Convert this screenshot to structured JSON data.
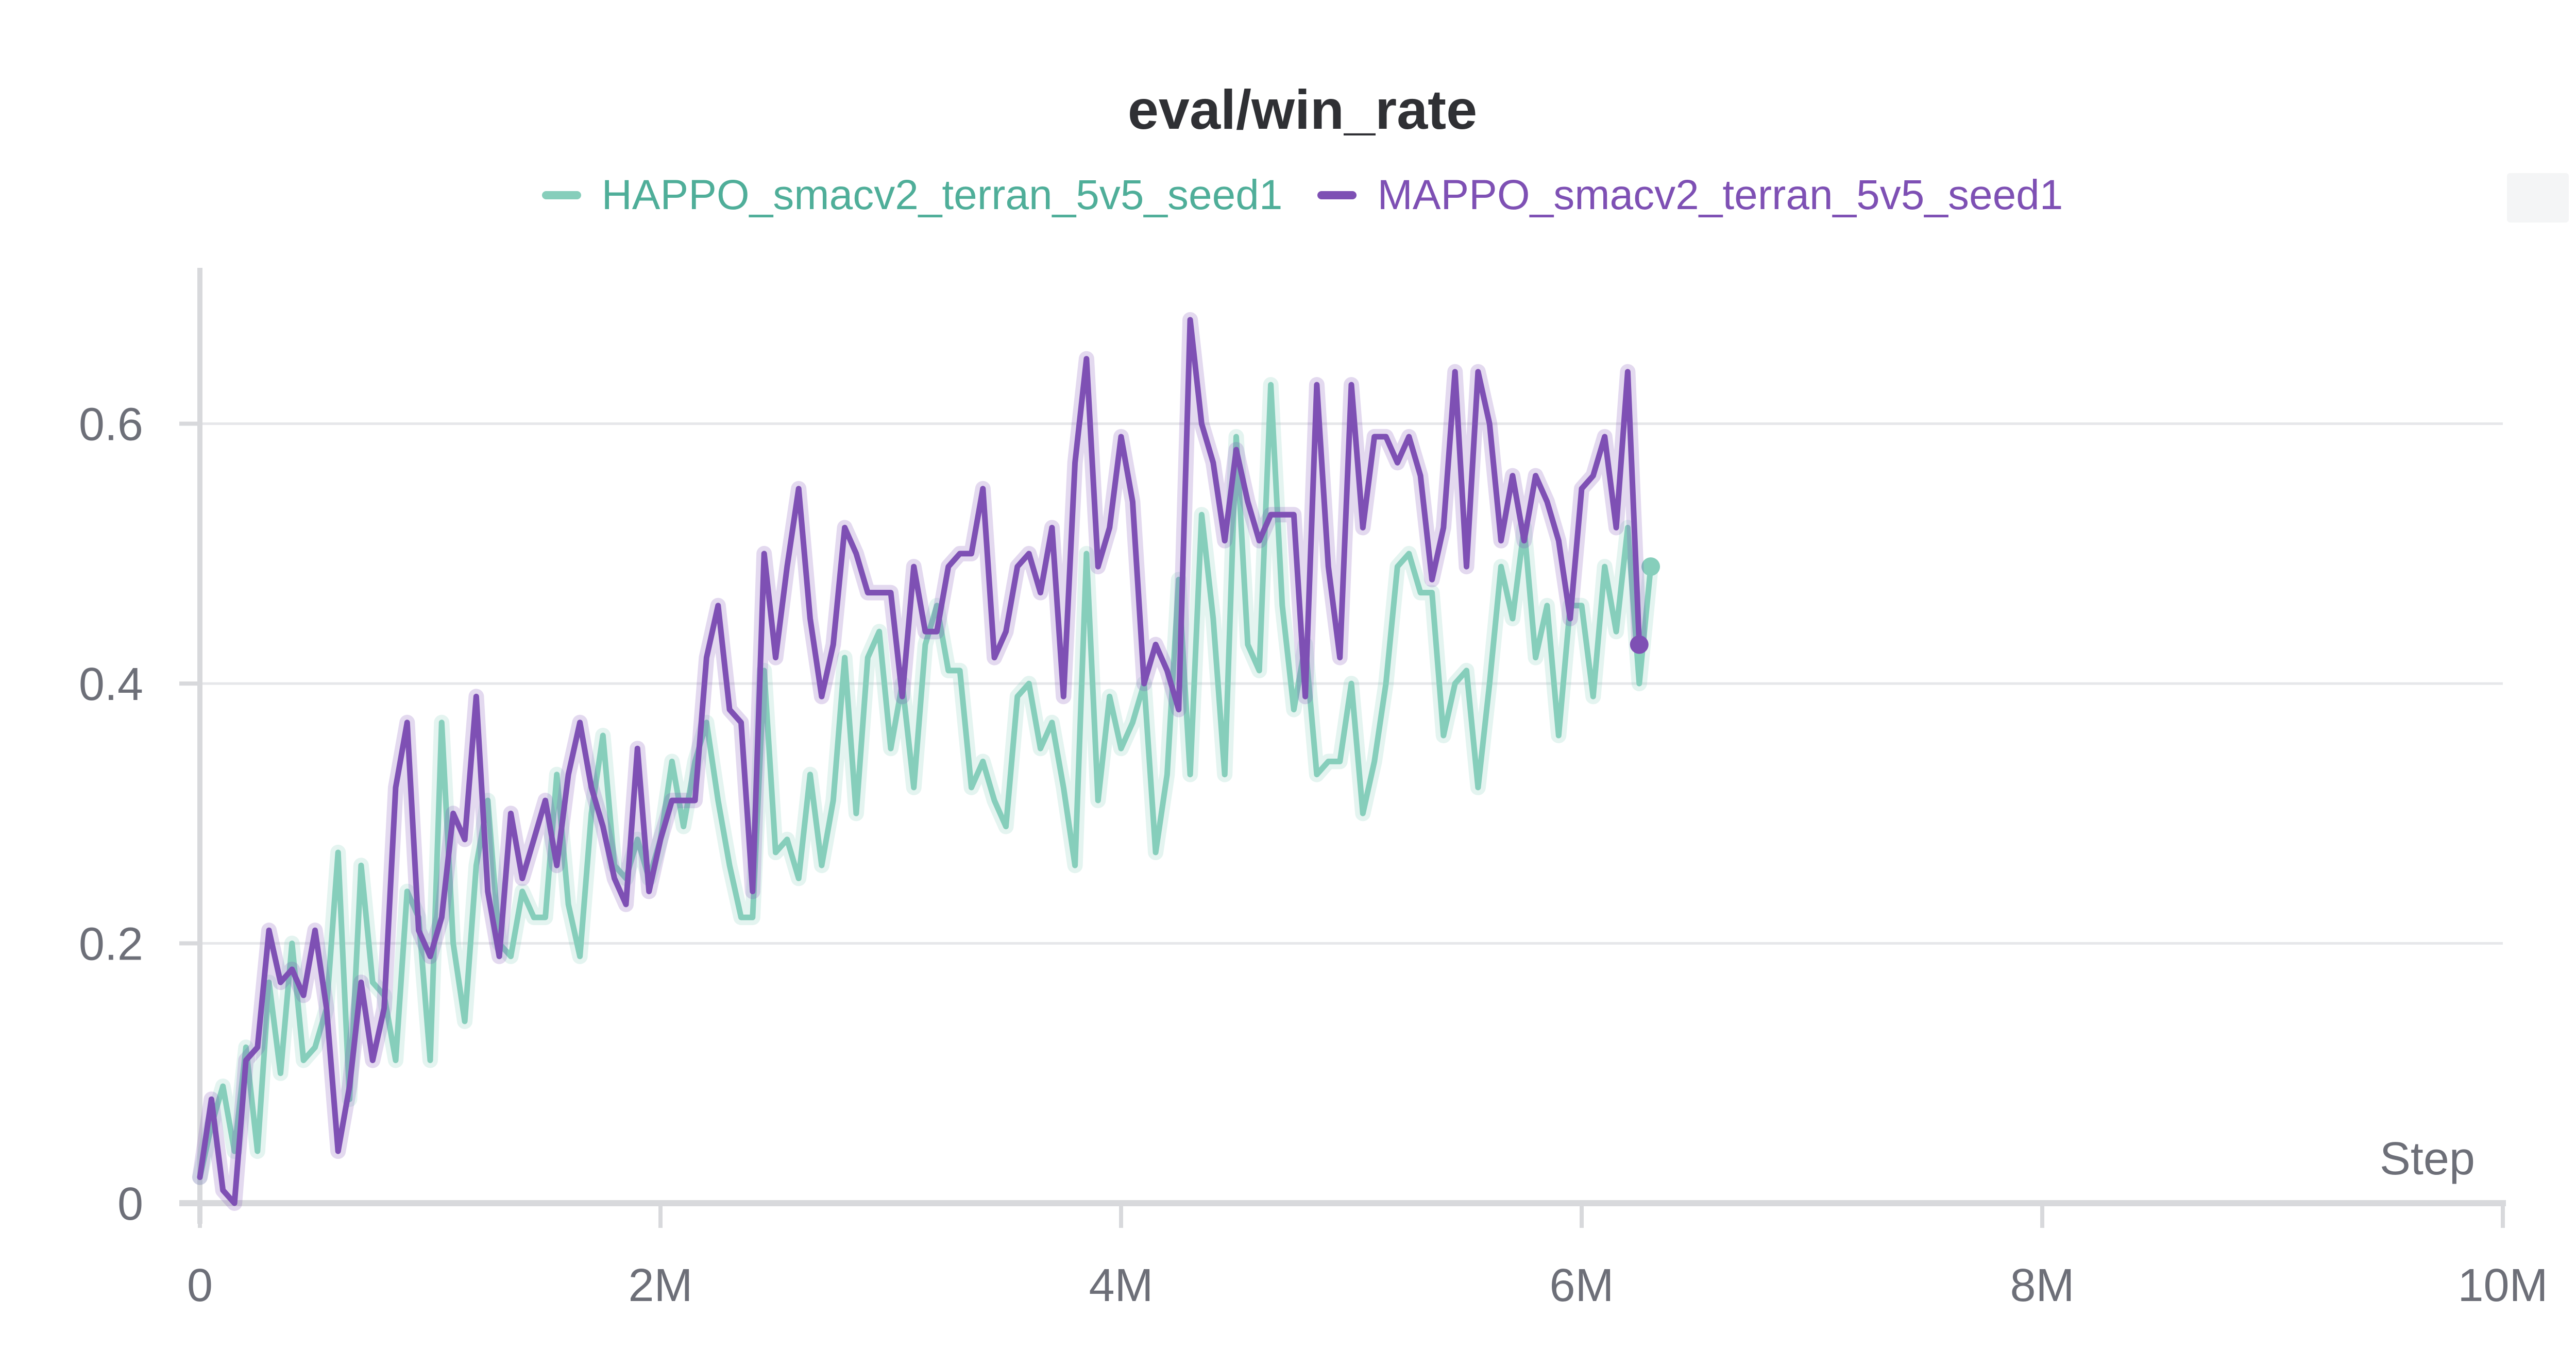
{
  "chart_data": {
    "type": "line",
    "title": "eval/win_rate",
    "xlabel": "Step",
    "ylabel": "",
    "xlim": [
      0,
      10000000
    ],
    "ylim": [
      0,
      0.72
    ],
    "x_ticks": [
      0,
      2000000,
      4000000,
      6000000,
      8000000,
      10000000
    ],
    "x_tick_labels": [
      "0",
      "2M",
      "4M",
      "6M",
      "8M",
      "10M"
    ],
    "y_ticks": [
      0,
      0.2,
      0.4,
      0.6
    ],
    "y_tick_labels": [
      "0",
      "0.2",
      "0.4",
      "0.6"
    ],
    "grid": true,
    "legend_position": "top-center",
    "x_step": 50000,
    "series": [
      {
        "name": "HAPPO_smacv2_terran_5v5_seed1",
        "color": "#86cebb",
        "values": [
          0.02,
          0.06,
          0.09,
          0.04,
          0.12,
          0.04,
          0.17,
          0.1,
          0.2,
          0.11,
          0.12,
          0.15,
          0.27,
          0.08,
          0.26,
          0.17,
          0.16,
          0.11,
          0.24,
          0.22,
          0.11,
          0.37,
          0.2,
          0.14,
          0.26,
          0.31,
          0.2,
          0.19,
          0.24,
          0.22,
          0.22,
          0.33,
          0.23,
          0.19,
          0.3,
          0.36,
          0.26,
          0.25,
          0.28,
          0.25,
          0.28,
          0.34,
          0.29,
          0.34,
          0.37,
          0.31,
          0.26,
          0.22,
          0.22,
          0.41,
          0.27,
          0.28,
          0.25,
          0.33,
          0.26,
          0.31,
          0.42,
          0.3,
          0.42,
          0.44,
          0.35,
          0.4,
          0.32,
          0.43,
          0.46,
          0.41,
          0.41,
          0.32,
          0.34,
          0.31,
          0.29,
          0.39,
          0.4,
          0.35,
          0.37,
          0.32,
          0.26,
          0.5,
          0.31,
          0.39,
          0.35,
          0.37,
          0.4,
          0.27,
          0.33,
          0.48,
          0.33,
          0.53,
          0.45,
          0.33,
          0.59,
          0.43,
          0.41,
          0.63,
          0.46,
          0.38,
          0.43,
          0.33,
          0.34,
          0.34,
          0.4,
          0.3,
          0.34,
          0.4,
          0.49,
          0.5,
          0.47,
          0.47,
          0.36,
          0.4,
          0.41,
          0.32,
          0.4,
          0.49,
          0.45,
          0.52,
          0.42,
          0.46,
          0.36,
          0.46,
          0.46,
          0.39,
          0.49,
          0.44,
          0.52,
          0.4,
          0.49
        ]
      },
      {
        "name": "MAPPO_smacv2_terran_5v5_seed1",
        "color": "#7e50b4",
        "values": [
          0.02,
          0.08,
          0.01,
          0.0,
          0.11,
          0.12,
          0.21,
          0.17,
          0.18,
          0.16,
          0.21,
          0.15,
          0.04,
          0.09,
          0.17,
          0.11,
          0.15,
          0.32,
          0.37,
          0.21,
          0.19,
          0.22,
          0.3,
          0.28,
          0.39,
          0.24,
          0.19,
          0.3,
          0.25,
          0.28,
          0.31,
          0.26,
          0.33,
          0.37,
          0.32,
          0.29,
          0.25,
          0.23,
          0.35,
          0.24,
          0.28,
          0.31,
          0.31,
          0.31,
          0.42,
          0.46,
          0.38,
          0.37,
          0.24,
          0.5,
          0.42,
          0.49,
          0.55,
          0.45,
          0.39,
          0.43,
          0.52,
          0.5,
          0.47,
          0.47,
          0.47,
          0.39,
          0.49,
          0.44,
          0.44,
          0.49,
          0.5,
          0.5,
          0.55,
          0.42,
          0.44,
          0.49,
          0.5,
          0.47,
          0.52,
          0.39,
          0.57,
          0.65,
          0.49,
          0.52,
          0.59,
          0.54,
          0.4,
          0.43,
          0.41,
          0.38,
          0.68,
          0.6,
          0.57,
          0.51,
          0.58,
          0.54,
          0.51,
          0.53,
          0.53,
          0.53,
          0.39,
          0.63,
          0.49,
          0.42,
          0.63,
          0.52,
          0.59,
          0.59,
          0.57,
          0.59,
          0.56,
          0.48,
          0.52,
          0.64,
          0.49,
          0.64,
          0.6,
          0.51,
          0.56,
          0.51,
          0.56,
          0.54,
          0.51,
          0.45,
          0.55,
          0.56,
          0.59,
          0.52,
          0.64,
          0.43
        ]
      }
    ]
  }
}
